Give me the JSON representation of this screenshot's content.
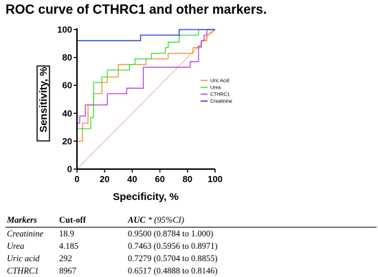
{
  "title": "ROC curve of CTHRC1 and other markers.",
  "chart_data": {
    "type": "line",
    "xlabel": "Specificity, %",
    "ylabel": "Sensitivity, %",
    "xlim": [
      0,
      100
    ],
    "ylim": [
      0,
      100
    ],
    "xticks": [
      "0",
      "20",
      "40",
      "60",
      "80",
      "100"
    ],
    "yticks": [
      "0",
      "20",
      "40",
      "60",
      "80",
      "100"
    ],
    "grid": false,
    "legend_position": "right",
    "reference_line": {
      "x": [
        0,
        100
      ],
      "y": [
        0,
        100
      ],
      "color": "#e8503a",
      "style": "dotted"
    },
    "series": [
      {
        "name": "Uric Acid",
        "color": "#f28c28",
        "x": [
          0,
          0,
          4,
          4,
          8,
          8,
          12,
          12,
          18,
          18,
          22,
          22,
          30,
          30,
          50,
          50,
          58,
          58,
          66,
          66,
          84,
          84,
          90,
          90,
          94,
          94,
          100
        ],
        "y": [
          0,
          20,
          20,
          33,
          33,
          46,
          46,
          54,
          54,
          62,
          62,
          66,
          66,
          75,
          75,
          79,
          79,
          79,
          79,
          83,
          83,
          87,
          87,
          92,
          92,
          96,
          100
        ]
      },
      {
        "name": "Urea",
        "color": "#33dd33",
        "x": [
          0,
          0,
          10,
          10,
          12,
          12,
          18,
          18,
          22,
          22,
          38,
          38,
          42,
          42,
          54,
          54,
          64,
          64,
          66,
          66,
          74,
          74,
          88,
          88,
          100
        ],
        "y": [
          0,
          29,
          29,
          37,
          37,
          62,
          62,
          66,
          66,
          71,
          71,
          75,
          75,
          79,
          79,
          83,
          83,
          87,
          87,
          91,
          91,
          96,
          96,
          100,
          100
        ]
      },
      {
        "name": "CTHRC1",
        "color": "#b43cdc",
        "x": [
          0,
          0,
          2,
          2,
          6,
          6,
          18,
          18,
          22,
          22,
          36,
          36,
          44,
          44,
          48,
          48,
          82,
          82,
          88,
          88,
          90,
          90,
          92,
          92,
          94,
          94,
          100
        ],
        "y": [
          0,
          33,
          33,
          38,
          38,
          46,
          46,
          46,
          46,
          54,
          54,
          58,
          58,
          58,
          58,
          73,
          73,
          77,
          77,
          88,
          88,
          92,
          92,
          96,
          96,
          100,
          100
        ]
      },
      {
        "name": "Creatinine",
        "color": "#1f2bd6",
        "x": [
          0,
          0,
          46,
          46,
          74,
          74,
          100
        ],
        "y": [
          0,
          92,
          92,
          96,
          96,
          100,
          100
        ]
      }
    ]
  },
  "table": {
    "headers": {
      "markers": "Markers",
      "cutoff": "Cut-off",
      "auc": "AUC",
      "auc_suffix": " * (95%CI)"
    },
    "rows": [
      {
        "marker": "Creatinine",
        "cutoff": "18.9",
        "auc": "0.9500 (0.8784 to 1.000)"
      },
      {
        "marker": "Urea",
        "cutoff": "4.185",
        "auc": "0.7463 (0.5956 to 0.8971)"
      },
      {
        "marker": "Uric acid",
        "cutoff": "292",
        "auc": "0.7279 (0.5704 to 0.8855)"
      },
      {
        "marker": "CTHRC1",
        "cutoff": "8967",
        "auc": "0.6517 (0.4888 to 0.8146)"
      }
    ]
  }
}
